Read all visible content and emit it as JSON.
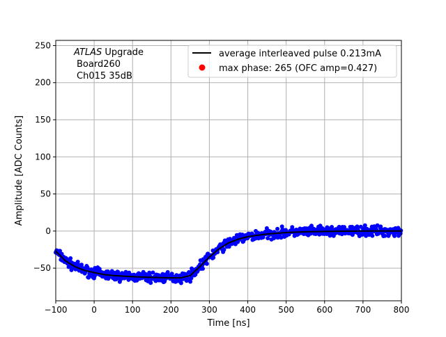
{
  "chart_data": {
    "type": "line",
    "title": "",
    "xlabel": "Time [ns]",
    "ylabel": "Amplitude [ADC Counts]",
    "xlim": [
      -100,
      800
    ],
    "ylim": [
      -94,
      257
    ],
    "xticks": [
      -100,
      0,
      100,
      200,
      300,
      400,
      500,
      600,
      700,
      800
    ],
    "yticks": [
      -50,
      0,
      50,
      100,
      150,
      200,
      250
    ],
    "grid": true,
    "legend_placement": "top-right",
    "annotation": {
      "line1_italic": "ATLAS",
      "line1_rest": " Upgrade",
      "line2": "Board260",
      "line3": "Ch015 35dB"
    },
    "series": [
      {
        "name": "average interleaved pulse 0.213mA",
        "kind": "line",
        "color": "#000000",
        "x": [
          -100,
          -75,
          -50,
          -25,
          0,
          25,
          50,
          100,
          150,
          200,
          225,
          250,
          275,
          300,
          325,
          350,
          375,
          400,
          450,
          500,
          550,
          600,
          700,
          800
        ],
        "y": [
          -27,
          -40,
          -48,
          -53,
          -56,
          -58.5,
          -60,
          -61.5,
          -62.5,
          -63,
          -63,
          -60,
          -48,
          -35,
          -24,
          -16,
          -11,
          -7.5,
          -4,
          -2,
          -1,
          -0.5,
          0,
          0
        ]
      },
      {
        "name": "max phase: 265 (OFC amp=0.427)",
        "kind": "marker",
        "color": "#ff0000"
      },
      {
        "name": "",
        "kind": "scatter-samples",
        "color": "#0000ff",
        "spread": 5
      }
    ]
  }
}
